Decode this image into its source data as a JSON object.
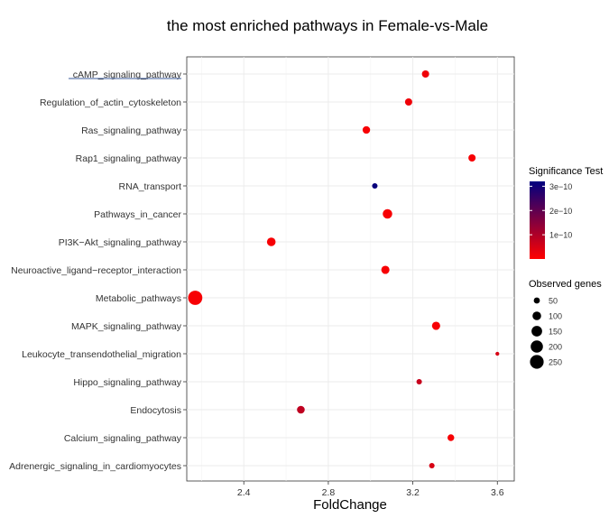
{
  "chart_data": {
    "type": "scatter",
    "title": "the most enriched pathways in Female-vs-Male",
    "xlabel": "FoldChange",
    "ylabel": "",
    "xlim": [
      2.13,
      3.68
    ],
    "xticks": [
      2.4,
      2.8,
      3.2,
      3.6
    ],
    "xtick_labels": [
      "2.4",
      "2.8",
      "3.2",
      "3.6"
    ],
    "grid": true,
    "categories": [
      "cAMP_signaling_pathway",
      "Regulation_of_actin_cytoskeleton",
      "Ras_signaling_pathway",
      "Rap1_signaling_pathway",
      "RNA_transport",
      "Pathways_in_cancer",
      "PI3K−Akt_signaling_pathway",
      "Neuroactive_ligand−receptor_interaction",
      "Metabolic_pathways",
      "MAPK_signaling_pathway",
      "Leukocyte_transendothelial_migration",
      "Hippo_signaling_pathway",
      "Endocytosis",
      "Calcium_signaling_pathway",
      "Adrenergic_signaling_in_cardiomyocytes"
    ],
    "points": [
      {
        "pathway": "cAMP_signaling_pathway",
        "fold_change": 3.26,
        "observed_genes": 70,
        "significance": 2e-11
      },
      {
        "pathway": "Regulation_of_actin_cytoskeleton",
        "fold_change": 3.18,
        "observed_genes": 70,
        "significance": 2e-11
      },
      {
        "pathway": "Ras_signaling_pathway",
        "fold_change": 2.98,
        "observed_genes": 75,
        "significance": 1e-11
      },
      {
        "pathway": "Rap1_signaling_pathway",
        "fold_change": 3.48,
        "observed_genes": 70,
        "significance": 1e-11
      },
      {
        "pathway": "RNA_transport",
        "fold_change": 3.02,
        "observed_genes": 40,
        "significance": 3.1e-10
      },
      {
        "pathway": "Pathways_in_cancer",
        "fold_change": 3.08,
        "observed_genes": 120,
        "significance": 1e-11
      },
      {
        "pathway": "PI3K−Akt_signaling_pathway",
        "fold_change": 2.53,
        "observed_genes": 100,
        "significance": 1e-11
      },
      {
        "pathway": "Neuroactive_ligand−receptor_interaction",
        "fold_change": 3.07,
        "observed_genes": 90,
        "significance": 1e-11
      },
      {
        "pathway": "Metabolic_pathways",
        "fold_change": 2.17,
        "observed_genes": 270,
        "significance": 1e-11
      },
      {
        "pathway": "MAPK_signaling_pathway",
        "fold_change": 3.31,
        "observed_genes": 90,
        "significance": 1e-11
      },
      {
        "pathway": "Leukocyte_transendothelial_migration",
        "fold_change": 3.6,
        "observed_genes": 20,
        "significance": 5e-11
      },
      {
        "pathway": "Hippo_signaling_pathway",
        "fold_change": 3.23,
        "observed_genes": 40,
        "significance": 7e-11
      },
      {
        "pathway": "Endocytosis",
        "fold_change": 2.67,
        "observed_genes": 80,
        "significance": 8e-11
      },
      {
        "pathway": "Calcium_signaling_pathway",
        "fold_change": 3.38,
        "observed_genes": 60,
        "significance": 1e-11
      },
      {
        "pathway": "Adrenergic_signaling_in_cardiomyocytes",
        "fold_change": 3.29,
        "observed_genes": 40,
        "significance": 5e-11
      }
    ],
    "color_legend": {
      "title": "Significance Test",
      "low_color": "#ff0000",
      "high_color": "#000080",
      "range": [
        0,
        3.2e-10
      ],
      "ticks": [
        1e-10,
        2e-10,
        3e-10
      ],
      "tick_labels": [
        "1e−10",
        "2e−10",
        "3e−10"
      ]
    },
    "size_legend": {
      "title": "Observed genes",
      "values": [
        50,
        100,
        150,
        200,
        250
      ],
      "labels": [
        "50",
        "100",
        "150",
        "200",
        "250"
      ]
    },
    "legend_position": "right"
  }
}
